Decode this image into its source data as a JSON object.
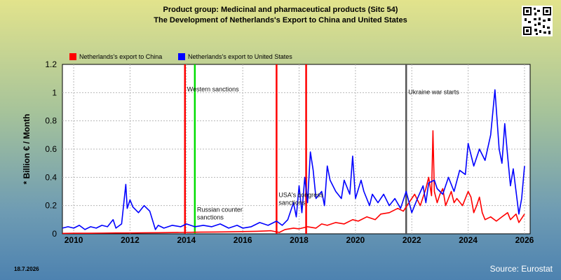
{
  "header": {
    "title_line1": "Product group: Medicinal and pharmaceutical products (Sitc 54)",
    "title_line2": "The Development of Netherlands's Export to  China and United States"
  },
  "footer": {
    "date": "18.7.2026",
    "source": "Source: Eurostat"
  },
  "chart_data": {
    "type": "line",
    "title": "Product group: Medicinal and pharmaceutical products (Sitc 54) — The Development of Netherlands's Export to  China and United States",
    "ylabel": "* Billion € / Month",
    "xlabel": "",
    "xlim": [
      2009.6,
      2026.2
    ],
    "ylim": [
      0,
      1.2
    ],
    "x_ticks": [
      2010,
      2012,
      2014,
      2016,
      2018,
      2020,
      2022,
      2024,
      2026
    ],
    "y_ticks": [
      0,
      0.2,
      0.4,
      0.6,
      0.8,
      1,
      1.2
    ],
    "y_tick_labels": [
      "0",
      "0.2",
      "0.4",
      "0.6",
      "0.8",
      "1",
      "1.2"
    ],
    "grid": true,
    "legend_position": "top-left",
    "series": [
      {
        "name": "Netherlands's export to China",
        "color": "#ff0000",
        "points": [
          [
            2009.6,
            0.003
          ],
          [
            2010.0,
            0.004
          ],
          [
            2010.5,
            0.004
          ],
          [
            2011.0,
            0.005
          ],
          [
            2011.5,
            0.006
          ],
          [
            2012.0,
            0.006
          ],
          [
            2012.5,
            0.007
          ],
          [
            2013.0,
            0.008
          ],
          [
            2013.5,
            0.009
          ],
          [
            2014.0,
            0.01
          ],
          [
            2014.5,
            0.012
          ],
          [
            2015.0,
            0.013
          ],
          [
            2015.5,
            0.014
          ],
          [
            2016.0,
            0.016
          ],
          [
            2016.5,
            0.018
          ],
          [
            2017.0,
            0.022
          ],
          [
            2017.3,
            0.01
          ],
          [
            2017.5,
            0.03
          ],
          [
            2017.8,
            0.04
          ],
          [
            2018.0,
            0.035
          ],
          [
            2018.3,
            0.05
          ],
          [
            2018.6,
            0.04
          ],
          [
            2018.8,
            0.07
          ],
          [
            2019.0,
            0.06
          ],
          [
            2019.3,
            0.08
          ],
          [
            2019.6,
            0.07
          ],
          [
            2019.9,
            0.1
          ],
          [
            2020.1,
            0.09
          ],
          [
            2020.4,
            0.12
          ],
          [
            2020.7,
            0.1
          ],
          [
            2020.9,
            0.14
          ],
          [
            2021.2,
            0.15
          ],
          [
            2021.5,
            0.18
          ],
          [
            2021.7,
            0.16
          ],
          [
            2021.9,
            0.22
          ],
          [
            2022.1,
            0.28
          ],
          [
            2022.3,
            0.2
          ],
          [
            2022.5,
            0.32
          ],
          [
            2022.6,
            0.4
          ],
          [
            2022.7,
            0.27
          ],
          [
            2022.75,
            0.73
          ],
          [
            2022.8,
            0.3
          ],
          [
            2022.9,
            0.22
          ],
          [
            2023.0,
            0.28
          ],
          [
            2023.1,
            0.32
          ],
          [
            2023.2,
            0.2
          ],
          [
            2023.4,
            0.3
          ],
          [
            2023.5,
            0.22
          ],
          [
            2023.6,
            0.25
          ],
          [
            2023.8,
            0.2
          ],
          [
            2024.0,
            0.3
          ],
          [
            2024.1,
            0.26
          ],
          [
            2024.2,
            0.15
          ],
          [
            2024.3,
            0.2
          ],
          [
            2024.4,
            0.26
          ],
          [
            2024.5,
            0.15
          ],
          [
            2024.6,
            0.1
          ],
          [
            2024.8,
            0.12
          ],
          [
            2025.0,
            0.09
          ],
          [
            2025.2,
            0.12
          ],
          [
            2025.4,
            0.15
          ],
          [
            2025.5,
            0.1
          ],
          [
            2025.7,
            0.14
          ],
          [
            2025.8,
            0.08
          ],
          [
            2026.0,
            0.14
          ]
        ]
      },
      {
        "name": "Netherlands's export to United States",
        "color": "#0000ff",
        "points": [
          [
            2009.6,
            0.04
          ],
          [
            2009.8,
            0.05
          ],
          [
            2010.0,
            0.04
          ],
          [
            2010.2,
            0.06
          ],
          [
            2010.4,
            0.03
          ],
          [
            2010.6,
            0.05
          ],
          [
            2010.8,
            0.04
          ],
          [
            2011.0,
            0.06
          ],
          [
            2011.2,
            0.05
          ],
          [
            2011.4,
            0.1
          ],
          [
            2011.5,
            0.04
          ],
          [
            2011.7,
            0.07
          ],
          [
            2011.85,
            0.35
          ],
          [
            2011.9,
            0.18
          ],
          [
            2012.0,
            0.24
          ],
          [
            2012.1,
            0.19
          ],
          [
            2012.3,
            0.15
          ],
          [
            2012.5,
            0.2
          ],
          [
            2012.7,
            0.16
          ],
          [
            2012.9,
            0.03
          ],
          [
            2013.0,
            0.06
          ],
          [
            2013.2,
            0.04
          ],
          [
            2013.5,
            0.06
          ],
          [
            2013.8,
            0.05
          ],
          [
            2014.0,
            0.07
          ],
          [
            2014.3,
            0.05
          ],
          [
            2014.6,
            0.06
          ],
          [
            2014.9,
            0.05
          ],
          [
            2015.2,
            0.07
          ],
          [
            2015.5,
            0.04
          ],
          [
            2015.8,
            0.06
          ],
          [
            2016.0,
            0.04
          ],
          [
            2016.3,
            0.05
          ],
          [
            2016.6,
            0.08
          ],
          [
            2016.9,
            0.06
          ],
          [
            2017.2,
            0.09
          ],
          [
            2017.4,
            0.06
          ],
          [
            2017.6,
            0.1
          ],
          [
            2017.8,
            0.22
          ],
          [
            2017.9,
            0.12
          ],
          [
            2018.0,
            0.34
          ],
          [
            2018.1,
            0.15
          ],
          [
            2018.2,
            0.4
          ],
          [
            2018.3,
            0.22
          ],
          [
            2018.4,
            0.58
          ],
          [
            2018.5,
            0.45
          ],
          [
            2018.6,
            0.25
          ],
          [
            2018.8,
            0.3
          ],
          [
            2018.9,
            0.2
          ],
          [
            2019.0,
            0.48
          ],
          [
            2019.1,
            0.38
          ],
          [
            2019.3,
            0.3
          ],
          [
            2019.5,
            0.25
          ],
          [
            2019.6,
            0.38
          ],
          [
            2019.8,
            0.28
          ],
          [
            2019.9,
            0.55
          ],
          [
            2020.0,
            0.25
          ],
          [
            2020.2,
            0.38
          ],
          [
            2020.3,
            0.3
          ],
          [
            2020.5,
            0.2
          ],
          [
            2020.6,
            0.28
          ],
          [
            2020.8,
            0.22
          ],
          [
            2021.0,
            0.28
          ],
          [
            2021.2,
            0.2
          ],
          [
            2021.4,
            0.25
          ],
          [
            2021.6,
            0.18
          ],
          [
            2021.8,
            0.3
          ],
          [
            2022.0,
            0.15
          ],
          [
            2022.2,
            0.25
          ],
          [
            2022.4,
            0.34
          ],
          [
            2022.5,
            0.22
          ],
          [
            2022.6,
            0.36
          ],
          [
            2022.8,
            0.38
          ],
          [
            2022.9,
            0.32
          ],
          [
            2023.1,
            0.28
          ],
          [
            2023.3,
            0.4
          ],
          [
            2023.5,
            0.3
          ],
          [
            2023.7,
            0.45
          ],
          [
            2023.9,
            0.42
          ],
          [
            2024.0,
            0.64
          ],
          [
            2024.2,
            0.48
          ],
          [
            2024.4,
            0.6
          ],
          [
            2024.6,
            0.52
          ],
          [
            2024.8,
            0.7
          ],
          [
            2024.95,
            1.02
          ],
          [
            2025.1,
            0.6
          ],
          [
            2025.2,
            0.5
          ],
          [
            2025.3,
            0.78
          ],
          [
            2025.4,
            0.55
          ],
          [
            2025.5,
            0.34
          ],
          [
            2025.6,
            0.46
          ],
          [
            2025.7,
            0.3
          ],
          [
            2025.8,
            0.14
          ],
          [
            2025.9,
            0.25
          ],
          [
            2026.0,
            0.48
          ]
        ]
      }
    ],
    "events": [
      {
        "x": 2013.95,
        "color": "#ff0000",
        "label": "Western sanctions",
        "label_y": 1.01
      },
      {
        "x": 2014.3,
        "color": "#00dd00",
        "label": "Russian counter sanctions",
        "label_y": 0.155
      },
      {
        "x": 2017.2,
        "color": "#ff0000",
        "label": "USA's congress sanctions",
        "label_y": 0.26
      },
      {
        "x": 2018.25,
        "color": "#ff0000",
        "label": "",
        "label_y": 0
      },
      {
        "x": 2021.8,
        "color": "#555555",
        "label": "Ukraine war starts",
        "label_y": 0.99
      }
    ]
  }
}
